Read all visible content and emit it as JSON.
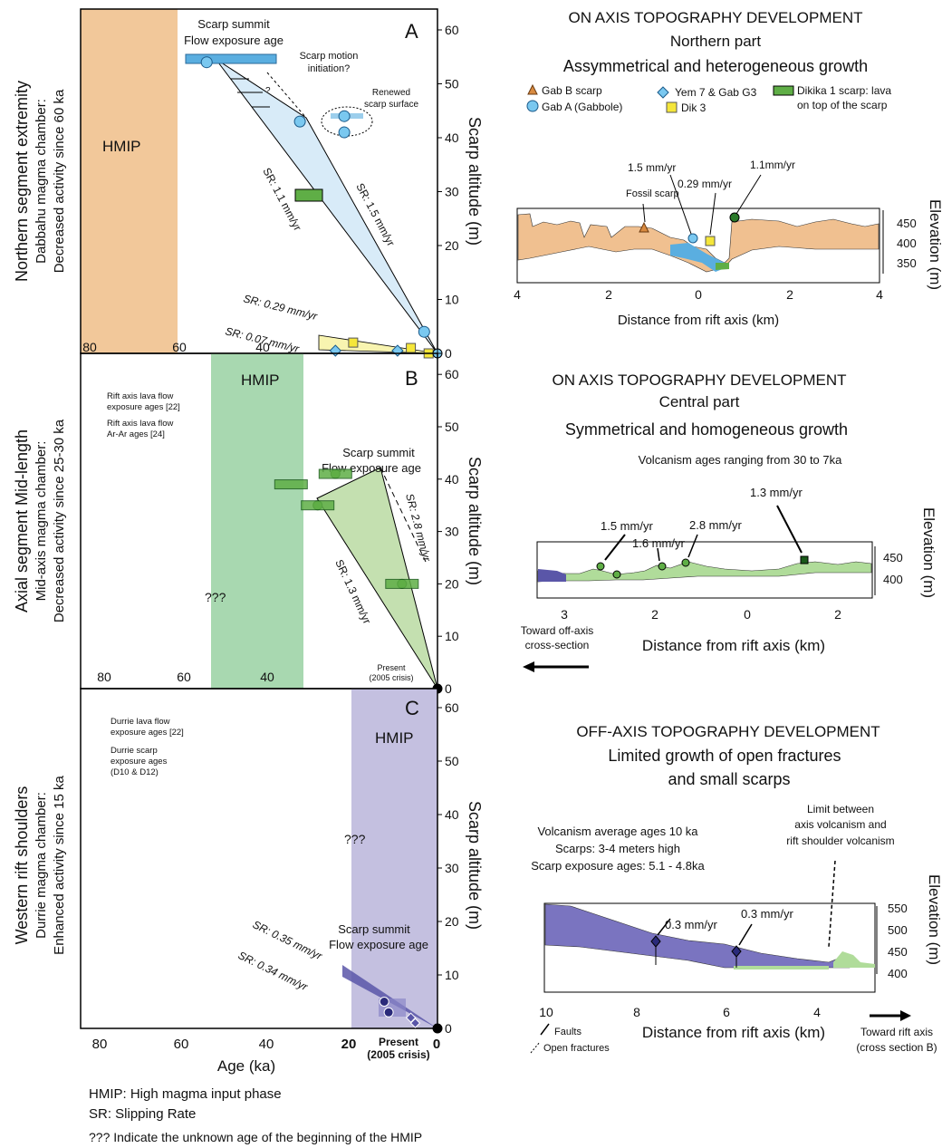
{
  "panels": {
    "A": {
      "letter": "A",
      "side_title": [
        "Northern segment extremity",
        "Dabbahu magma chamber:",
        "Decreased activity since 60 ka"
      ],
      "hmip": "HMIP",
      "summit_label": [
        "Scarp summit",
        "Flow exposure age"
      ],
      "motion_label": [
        "Scarp motion",
        "initiation?"
      ],
      "renewed_label": [
        "Renewed",
        "scarp surface"
      ],
      "qmark": "?",
      "sr_labels": [
        "SR: 1.1 mm/yr",
        "SR: 1.5 mm/yr",
        "SR: 0.29 mm/yr",
        "SR: 0.07 mm/yr"
      ]
    },
    "B": {
      "letter": "B",
      "side_title": [
        "Axial segment Mid-length",
        "Mid-axis magma chamber:",
        "Decreased activity since 25-30 ka"
      ],
      "hmip": "HMIP",
      "unknown": "???",
      "summit_label": [
        "Scarp summit",
        "Flow exposure age"
      ],
      "legend": [
        [
          "Rift axis lava flow",
          "exposure ages [22]"
        ],
        [
          "Rift axis lava flow",
          "Ar-Ar ages [24]"
        ]
      ],
      "sr_labels": [
        "SR: 2.8 mm/yr",
        "SR: 1.3 mm/yr"
      ],
      "present_label": [
        "Present",
        "(2005 crisis)"
      ]
    },
    "C": {
      "letter": "C",
      "side_title": [
        "Western rift shoulders",
        "Durrie magma chamber:",
        "Enhanced activity since 15 ka"
      ],
      "hmip": "HMIP",
      "unknown": "???",
      "summit_label": [
        "Scarp summit",
        "Flow exposure age"
      ],
      "legend": [
        [
          "Durrie lava flow",
          "exposure ages [22]"
        ],
        [
          "Durrie scarp",
          "exposure ages",
          "(D10 & D12)"
        ]
      ],
      "sr_labels": [
        "SR: 0.35 mm/yr",
        "SR: 0.34 mm/yr"
      ],
      "present_label": [
        "Present",
        "(2005 crisis)"
      ]
    }
  },
  "axes": {
    "ylabel": "Scarp altitude (m)",
    "xlabel": "Age (ka)",
    "yticks": [
      "0",
      "10",
      "20",
      "30",
      "40",
      "50",
      "60"
    ],
    "xticks": [
      "80",
      "60",
      "40",
      "20",
      "0"
    ]
  },
  "footnotes": [
    "HMIP: High magma input phase",
    "SR: Slipping Rate",
    "??? Indicate the unknown age of the beginning of the HMIP"
  ],
  "right": {
    "north": {
      "title": [
        "ON AXIS TOPOGRAPHY DEVELOPMENT",
        "Northern part",
        "Assymmetrical and heterogeneous growth"
      ],
      "legend": [
        "Gab B scarp",
        "Gab A (Gabbole)",
        "Yem 7 & Gab G3",
        "Dik 3",
        "Dikika 1 scarp: lava",
        "on top of the scarp"
      ],
      "rates": [
        "1.5 mm/yr",
        "0.29 mm/yr",
        "1.1mm/yr"
      ],
      "fossil": "Fossil scarp",
      "xticks": [
        "4",
        "2",
        "0",
        "2",
        "4"
      ],
      "yticks": [
        "450",
        "400",
        "350"
      ],
      "xlabel": "Distance from rift axis (km)",
      "ylabel": "Elevation (m)"
    },
    "central": {
      "title": [
        "ON AXIS TOPOGRAPHY DEVELOPMENT",
        "Central part",
        "Symmetrical and homogeneous growth"
      ],
      "note": "Volcanism ages ranging from 30 to 7ka",
      "rates": [
        "1.5 mm/yr",
        "1.6 mm/yr",
        "2.8 mm/yr",
        "1.3 mm/yr"
      ],
      "xticks": [
        "3",
        "2",
        "0",
        "2"
      ],
      "yticks": [
        "450",
        "400"
      ],
      "xlabel": "Distance from rift axis (km)",
      "ylabel": "Elevation (m)",
      "offaxis": [
        "Toward off-axis",
        "cross-section"
      ]
    },
    "off": {
      "title": [
        "OFF-AXIS TOPOGRAPHY DEVELOPMENT",
        "Limited growth of open fractures",
        "and small scarps"
      ],
      "note": [
        "Volcanism average ages 10 ka",
        "Scarps: 3-4 meters high",
        "Scarp exposure ages: 5.1 - 4.8ka"
      ],
      "limit": [
        "Limit between",
        "axis volcanism and",
        "rift shoulder volcanism"
      ],
      "rates": [
        "0.3 mm/yr",
        "0.3 mm/yr"
      ],
      "xticks": [
        "10",
        "8",
        "6",
        "4"
      ],
      "yticks": [
        "550",
        "500",
        "450",
        "400"
      ],
      "xlabel": "Distance from rift axis (km)",
      "ylabel": "Elevation (m)",
      "legend": [
        "Faults",
        "Open fractures"
      ],
      "toward": [
        "Toward rift axis",
        "(cross section B)"
      ]
    }
  },
  "colors": {
    "hmip_a": "#f2c89a",
    "hmip_b": "#a8d8b0",
    "hmip_c": "#c4c0e0",
    "blue": "#5aaee0",
    "green": "#5fae46",
    "yellow": "#f5e63a",
    "purple": "#5a56a8",
    "tan": "#f0c090"
  },
  "chart_data": [
    {
      "type": "scatter",
      "title": "A",
      "xlabel": "Age (ka)",
      "ylabel": "Scarp altitude (m)",
      "xlim": [
        85,
        0
      ],
      "ylim": [
        0,
        65
      ],
      "series": [
        {
          "name": "Gab A (Gabbole)",
          "x": [
            52,
            31,
            21,
            21,
            3
          ],
          "y": [
            54,
            43,
            44,
            41,
            4
          ]
        },
        {
          "name": "Yem 7 & Gab G3",
          "x": [
            23,
            9
          ],
          "y": [
            0.5,
            0.5
          ]
        },
        {
          "name": "Dik 3",
          "x": [
            19,
            6,
            2
          ],
          "y": [
            2,
            1,
            0
          ]
        },
        {
          "name": "Dikika 1 scarp: lava on top of the scarp",
          "x": [
            30
          ],
          "y": [
            29
          ]
        }
      ],
      "annotations": [
        "SR: 1.1 mm/yr",
        "SR: 1.5 mm/yr",
        "SR: 0.29 mm/yr",
        "SR: 0.07 mm/yr"
      ]
    },
    {
      "type": "scatter",
      "title": "B",
      "xlabel": "Age (ka)",
      "ylabel": "Scarp altitude (m)",
      "xlim": [
        85,
        0
      ],
      "ylim": [
        0,
        65
      ],
      "series": [
        {
          "name": "Rift axis lava flow exposure ages [22]",
          "x": [
            23,
            27,
            8
          ],
          "y": [
            41,
            35,
            20
          ]
        },
        {
          "name": "Rift axis lava flow Ar-Ar ages [24]",
          "x": [
            33,
            23,
            27,
            8
          ],
          "y": [
            39,
            41,
            35,
            20
          ]
        }
      ],
      "annotations": [
        "SR: 2.8 mm/yr",
        "SR: 1.3 mm/yr"
      ]
    },
    {
      "type": "scatter",
      "title": "C",
      "xlabel": "Age (ka)",
      "ylabel": "Scarp altitude (m)",
      "xlim": [
        85,
        0
      ],
      "ylim": [
        0,
        65
      ],
      "series": [
        {
          "name": "Durrie lava flow exposure ages [22]",
          "x": [
            12,
            11
          ],
          "y": [
            5,
            3
          ]
        },
        {
          "name": "Durrie scarp exposure ages (D10 & D12)",
          "x": [
            6,
            5
          ],
          "y": [
            2,
            1
          ]
        }
      ],
      "annotations": [
        "SR: 0.35 mm/yr",
        "SR: 0.34 mm/yr"
      ]
    }
  ]
}
